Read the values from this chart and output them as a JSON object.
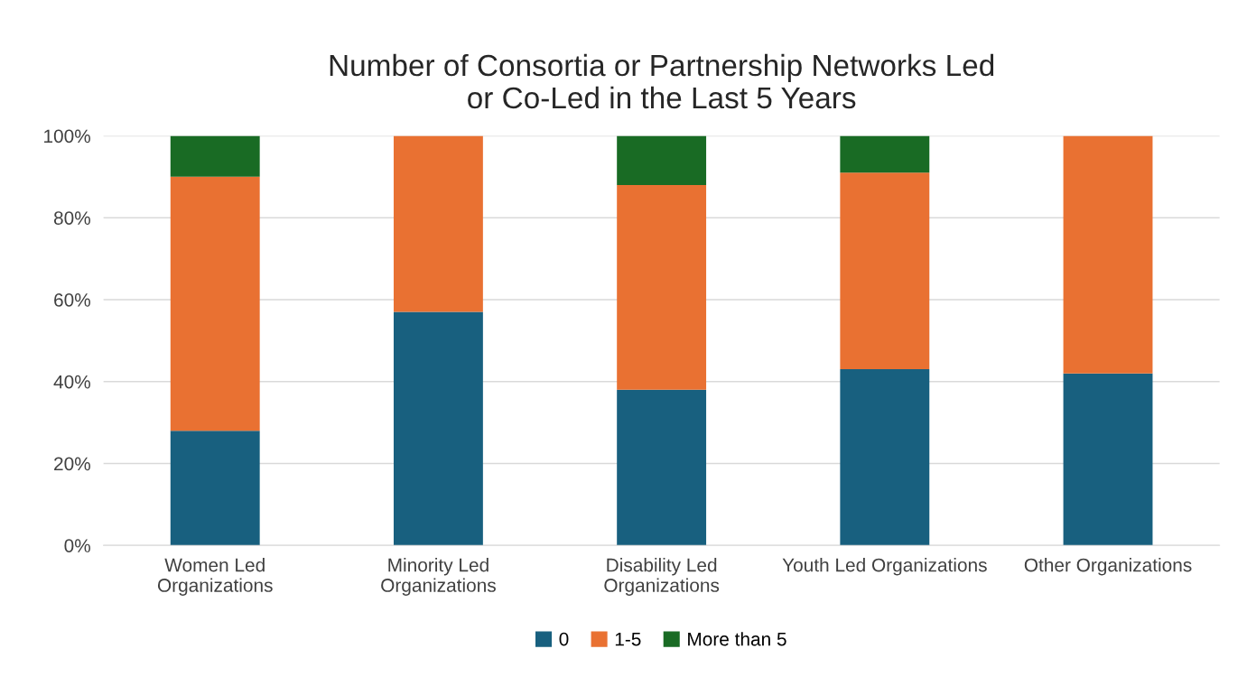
{
  "chart_data": {
    "type": "bar",
    "title": "Number of Consortia or Partnership Networks Led\nor Co-Led in the Last 5 Years",
    "categories": [
      "Women Led\nOrganizations",
      "Minority Led\nOrganizations",
      "Disability Led\nOrganizations",
      "Youth Led Organizations",
      "Other Organizations"
    ],
    "stacked": true,
    "series": [
      {
        "name": "0",
        "color": "#18607f",
        "values": [
          28,
          57,
          38,
          43,
          42
        ]
      },
      {
        "name": "1-5",
        "color": "#e97132",
        "values": [
          62,
          43,
          50,
          48,
          58
        ]
      },
      {
        "name": "More than 5",
        "color": "#196b24",
        "values": [
          10,
          0,
          12,
          9,
          0
        ]
      }
    ],
    "ylim": [
      0,
      100
    ],
    "yticks": [
      {
        "value": 0,
        "label": "0%"
      },
      {
        "value": 20,
        "label": "20%"
      },
      {
        "value": 40,
        "label": "40%"
      },
      {
        "value": 60,
        "label": "60%"
      },
      {
        "value": 80,
        "label": "80%"
      },
      {
        "value": 100,
        "label": "100%"
      }
    ],
    "grid": "y",
    "legend": "bottom"
  }
}
